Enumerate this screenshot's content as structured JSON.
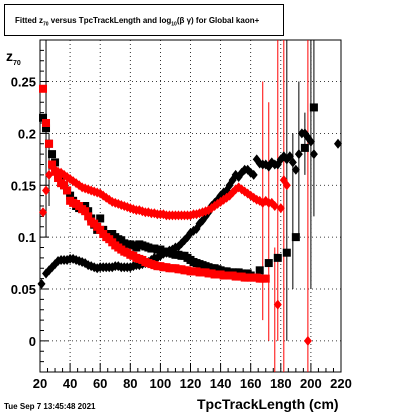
{
  "title_parts": {
    "prefix": "Fitted  z",
    "sub1": "70",
    "middle": "  versus TpcTrackLength and log",
    "sub2": "10",
    "suffix": "(β  γ) for Global kaon+"
  },
  "axis": {
    "ylabel_main": "z",
    "ylabel_sub": "70",
    "xlabel": "TpcTrackLength (cm)"
  },
  "timestamp": "Tue Sep  7 13:45:48 2021",
  "chart_data": {
    "type": "scatter",
    "title": "Fitted z70 versus TpcTrackLength and log10(β γ) for Global kaon+",
    "xlabel": "TpcTrackLength (cm)",
    "ylabel": "z70",
    "xlim": [
      20,
      220
    ],
    "ylim": [
      -0.03,
      0.29
    ],
    "x_ticks": [
      20,
      40,
      60,
      80,
      100,
      120,
      140,
      160,
      180,
      200,
      220
    ],
    "y_ticks": [
      0,
      0.05,
      0.1,
      0.15,
      0.2,
      0.25
    ],
    "y_tick_labels": [
      "0",
      "0.05",
      "0.1",
      "0.15",
      "0.2",
      "0.25"
    ],
    "grid": true,
    "colors": {
      "black": "#000000",
      "red": "#ff0000"
    },
    "series": [
      {
        "marker": "square",
        "color": "#000000",
        "x": [
          22,
          24,
          26,
          28,
          30,
          32,
          34,
          36,
          38,
          40,
          42,
          44,
          46,
          48,
          50,
          52,
          54,
          56,
          58,
          60,
          62,
          64,
          66,
          68,
          70,
          72,
          74,
          76,
          78,
          80,
          82,
          84,
          86,
          88,
          90,
          92,
          94,
          96,
          98,
          100,
          102,
          104,
          106,
          108,
          110,
          112,
          114,
          116,
          118,
          120,
          122,
          124,
          126,
          128,
          130,
          132,
          134,
          136,
          138,
          140,
          142,
          144,
          146,
          148,
          150,
          152,
          154,
          156,
          158,
          160,
          166,
          172,
          178,
          184,
          190,
          196,
          202
        ],
        "y": [
          0.215,
          0.205,
          0.19,
          0.18,
          0.172,
          0.16,
          0.158,
          0.15,
          0.145,
          0.14,
          0.135,
          0.13,
          0.128,
          0.127,
          0.13,
          0.125,
          0.118,
          0.112,
          0.107,
          0.118,
          0.107,
          0.103,
          0.102,
          0.103,
          0.1,
          0.098,
          0.097,
          0.094,
          0.093,
          0.093,
          0.092,
          0.09,
          0.093,
          0.092,
          0.091,
          0.09,
          0.089,
          0.089,
          0.088,
          0.088,
          0.086,
          0.086,
          0.085,
          0.084,
          0.083,
          0.083,
          0.082,
          0.082,
          0.08,
          0.078,
          0.076,
          0.075,
          0.074,
          0.073,
          0.072,
          0.071,
          0.07,
          0.07,
          0.069,
          0.068,
          0.067,
          0.067,
          0.066,
          0.066,
          0.066,
          0.066,
          0.065,
          0.064,
          0.065,
          0.063,
          0.068,
          0.075,
          0.08,
          0.085,
          0.1,
          0.186,
          0.225
        ]
      },
      {
        "marker": "diamond",
        "color": "#000000",
        "x": [
          21,
          24,
          26,
          28,
          30,
          32,
          34,
          36,
          38,
          40,
          42,
          44,
          46,
          48,
          50,
          52,
          54,
          56,
          58,
          60,
          62,
          64,
          66,
          68,
          70,
          72,
          74,
          76,
          78,
          80,
          82,
          84,
          86,
          88,
          90,
          92,
          94,
          96,
          98,
          100,
          102,
          104,
          106,
          108,
          110,
          112,
          114,
          116,
          118,
          120,
          122,
          124,
          126,
          128,
          130,
          132,
          134,
          136,
          138,
          140,
          142,
          144,
          146,
          148,
          150,
          152,
          154,
          156,
          158,
          160,
          162,
          164,
          166,
          168,
          170,
          172,
          174,
          176,
          178,
          180,
          182,
          184,
          186,
          188,
          190,
          192,
          194,
          196,
          198,
          200,
          202,
          218
        ],
        "y": [
          0.055,
          0.065,
          0.068,
          0.071,
          0.074,
          0.077,
          0.078,
          0.078,
          0.078,
          0.079,
          0.079,
          0.078,
          0.077,
          0.076,
          0.075,
          0.073,
          0.072,
          0.071,
          0.07,
          0.071,
          0.071,
          0.071,
          0.071,
          0.071,
          0.072,
          0.072,
          0.071,
          0.071,
          0.071,
          0.071,
          0.072,
          0.073,
          0.073,
          0.074,
          0.075,
          0.076,
          0.078,
          0.08,
          0.08,
          0.082,
          0.084,
          0.085,
          0.087,
          0.088,
          0.09,
          0.091,
          0.094,
          0.097,
          0.1,
          0.104,
          0.106,
          0.108,
          0.113,
          0.116,
          0.12,
          0.124,
          0.13,
          0.133,
          0.136,
          0.14,
          0.143,
          0.145,
          0.15,
          0.155,
          0.16,
          0.158,
          0.162,
          0.165,
          0.165,
          0.162,
          0.16,
          0.175,
          0.171,
          0.17,
          0.17,
          0.168,
          0.172,
          0.17,
          0.17,
          0.175,
          0.178,
          0.175,
          0.178,
          0.172,
          0.165,
          0.18,
          0.2,
          0.2,
          0.196,
          0.192,
          0.18,
          0.19
        ]
      },
      {
        "marker": "square",
        "color": "#ff0000",
        "x": [
          22,
          24,
          26,
          28,
          30,
          32,
          34,
          36,
          38,
          40,
          42,
          44,
          46,
          48,
          50,
          52,
          54,
          56,
          58,
          60,
          62,
          64,
          66,
          68,
          70,
          72,
          74,
          76,
          78,
          80,
          82,
          84,
          86,
          88,
          90,
          92,
          94,
          96,
          98,
          100,
          102,
          104,
          106,
          108,
          110,
          112,
          114,
          116,
          118,
          120,
          122,
          124,
          126,
          128,
          130,
          132,
          134,
          136,
          138,
          140,
          142,
          144,
          146,
          148,
          150,
          152,
          154,
          156,
          158,
          160,
          162,
          164,
          166,
          168,
          170
        ],
        "y": [
          0.243,
          0.21,
          0.19,
          0.17,
          0.163,
          0.157,
          0.152,
          0.15,
          0.145,
          0.135,
          0.133,
          0.132,
          0.13,
          0.127,
          0.125,
          0.12,
          0.115,
          0.113,
          0.11,
          0.107,
          0.103,
          0.1,
          0.098,
          0.095,
          0.092,
          0.09,
          0.088,
          0.086,
          0.085,
          0.083,
          0.082,
          0.08,
          0.079,
          0.078,
          0.076,
          0.075,
          0.074,
          0.073,
          0.072,
          0.072,
          0.071,
          0.071,
          0.07,
          0.07,
          0.07,
          0.069,
          0.069,
          0.068,
          0.068,
          0.067,
          0.067,
          0.067,
          0.066,
          0.066,
          0.066,
          0.065,
          0.065,
          0.064,
          0.064,
          0.064,
          0.063,
          0.063,
          0.063,
          0.063,
          0.062,
          0.062,
          0.062,
          0.061,
          0.061,
          0.061,
          0.061,
          0.061,
          0.06,
          0.06,
          0.06
        ]
      },
      {
        "marker": "diamond",
        "color": "#ff0000",
        "x": [
          22,
          24,
          26,
          28,
          30,
          32,
          34,
          36,
          38,
          40,
          42,
          44,
          46,
          48,
          50,
          52,
          54,
          56,
          58,
          60,
          62,
          64,
          66,
          68,
          70,
          72,
          74,
          76,
          78,
          80,
          82,
          84,
          86,
          88,
          90,
          92,
          94,
          96,
          98,
          100,
          102,
          104,
          106,
          108,
          110,
          112,
          114,
          116,
          118,
          120,
          122,
          124,
          126,
          128,
          130,
          132,
          134,
          136,
          138,
          140,
          142,
          144,
          146,
          148,
          150,
          152,
          154,
          156,
          158,
          160,
          162,
          164,
          166,
          168,
          170,
          172,
          174,
          176,
          178,
          180,
          182,
          184,
          198
        ],
        "y": [
          0.124,
          0.145,
          0.16,
          0.168,
          0.165,
          0.163,
          0.162,
          0.16,
          0.158,
          0.156,
          0.154,
          0.152,
          0.15,
          0.148,
          0.147,
          0.146,
          0.145,
          0.144,
          0.143,
          0.142,
          0.14,
          0.138,
          0.136,
          0.134,
          0.133,
          0.132,
          0.131,
          0.13,
          0.129,
          0.128,
          0.127,
          0.126,
          0.126,
          0.125,
          0.124,
          0.124,
          0.123,
          0.123,
          0.122,
          0.122,
          0.122,
          0.121,
          0.121,
          0.121,
          0.121,
          0.121,
          0.121,
          0.121,
          0.121,
          0.121,
          0.122,
          0.122,
          0.123,
          0.124,
          0.125,
          0.126,
          0.128,
          0.13,
          0.132,
          0.134,
          0.136,
          0.138,
          0.14,
          0.143,
          0.146,
          0.148,
          0.146,
          0.144,
          0.142,
          0.14,
          0.138,
          0.136,
          0.135,
          0.133,
          0.135,
          0.133,
          0.133,
          0.13,
          0.035,
          0.128,
          0.155,
          0.15,
          0.0
        ]
      }
    ]
  }
}
